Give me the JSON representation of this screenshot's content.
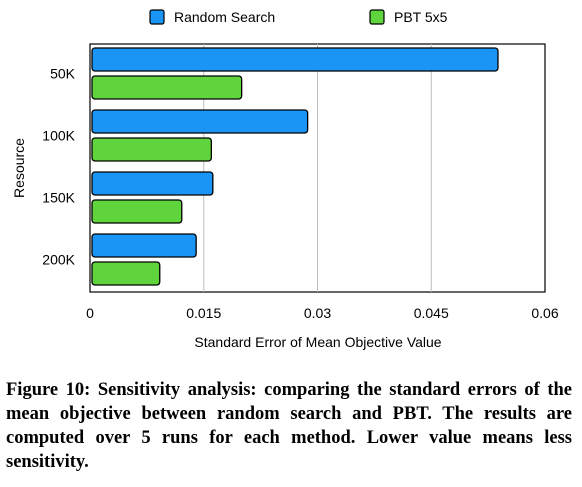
{
  "chart_data": {
    "type": "bar",
    "orientation": "horizontal",
    "categories": [
      "50K",
      "100K",
      "150K",
      "200K"
    ],
    "series": [
      {
        "name": "Random Search",
        "color": "#1a94f5",
        "values": [
          0.0538,
          0.0287,
          0.0162,
          0.014
        ]
      },
      {
        "name": "PBT 5x5",
        "color": "#5fd43c",
        "values": [
          0.02,
          0.016,
          0.0121,
          0.0092
        ]
      }
    ],
    "xlabel": "Standard Error of Mean Objective Value",
    "ylabel": "Resource",
    "xlim": [
      0,
      0.06
    ],
    "xticks": [
      "0",
      "0.015",
      "0.03",
      "0.045",
      "0.06"
    ],
    "grid": true,
    "legend_position": "top"
  },
  "caption": "Figure 10: Sensitivity analysis: comparing the standard errors of the mean objective between random search and PBT. The results are computed over 5 runs for each method. Lower value means less sensitivity."
}
